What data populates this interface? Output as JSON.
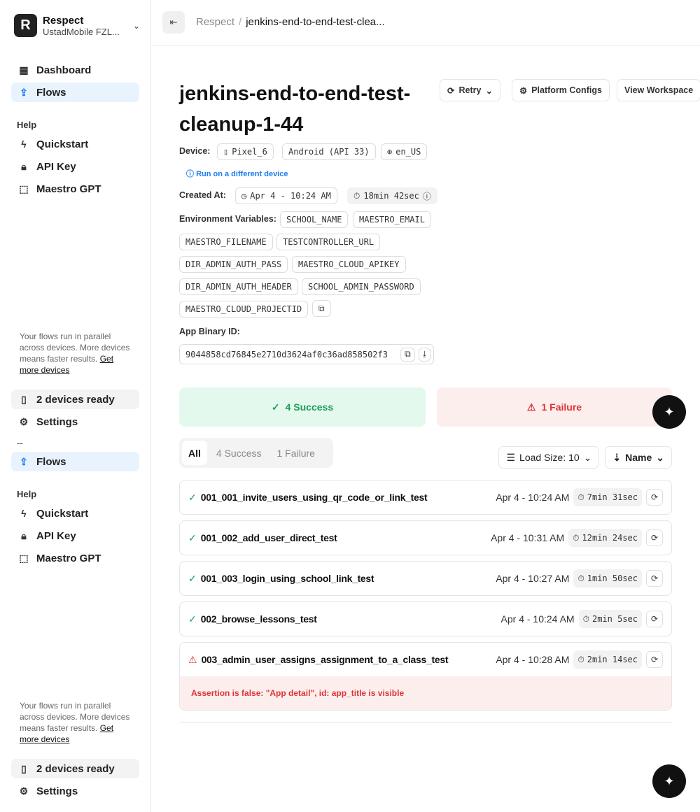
{
  "org": {
    "name": "Respect",
    "sub": "UstadMobile FZL...",
    "logo": "R"
  },
  "sidebar": [
    {
      "nav": [
        {
          "label": "Dashboard",
          "icon": "grid-icon"
        },
        {
          "label": "Flows",
          "icon": "upload-icon",
          "active": true
        }
      ],
      "help": "Help",
      "help_items": [
        {
          "label": "Quickstart"
        },
        {
          "label": "API Key"
        },
        {
          "label": "Maestro GPT"
        }
      ],
      "note": "Your flows run in parallel across devices. More devices means faster results.",
      "note_link": "Get more devices",
      "devices": "2 devices ready",
      "settings": "Settings"
    },
    {
      "sep": "--",
      "nav": [
        {
          "label": "Flows"
        }
      ],
      "help": "Help",
      "help_items": [
        {
          "label": "Quickstart"
        },
        {
          "label": "API Key"
        },
        {
          "label": "Maestro GPT"
        }
      ],
      "note": "Your flows run in parallel across devices. More devices means faster results.",
      "note_link": "Get more devices",
      "devices": "2 devices ready",
      "settings": "Settings"
    }
  ],
  "breadcrumb": {
    "parent": "Respect",
    "sep": "/",
    "current": "jenkins-end-to-end-test-clea..."
  },
  "title": "jenkins-end-to-end-test-cleanup-1-44",
  "actions": {
    "retry": "Retry",
    "platform": "Platform Configs",
    "workspace": "View Workspace"
  },
  "device": {
    "label": "Device:",
    "model": "Pixel_6",
    "os": "Android (API 33)",
    "locale": "en_US",
    "link": "Run on a different device"
  },
  "created": {
    "label": "Created At:",
    "value": "Apr 4 - 10:24 AM",
    "duration": "18min 42sec"
  },
  "env": {
    "label": "Environment Variables:",
    "vars": [
      "SCHOOL_NAME",
      "MAESTRO_EMAIL",
      "MAESTRO_FILENAME",
      "TESTCONTROLLER_URL",
      "DIR_ADMIN_AUTH_PASS",
      "MAESTRO_CLOUD_APIKEY",
      "DIR_ADMIN_AUTH_HEADER",
      "SCHOOL_ADMIN_PASSWORD",
      "MAESTRO_CLOUD_PROJECTID"
    ]
  },
  "binary": {
    "label": "App Binary ID:",
    "value": "9044858cd76845e2710d3624af0c36ad858502f3"
  },
  "summary": {
    "success": "4 Success",
    "failure": "1 Failure"
  },
  "tabs": [
    "All",
    "4 Success",
    "1 Failure"
  ],
  "load_size": "Load Size: 10",
  "sort": "Name",
  "flows": [
    {
      "name": "001_001_invite_users_using_qr_code_or_link_test",
      "date": "Apr 4 - 10:24 AM",
      "dur": "7min 31sec",
      "status": "success"
    },
    {
      "name": "001_002_add_user_direct_test",
      "date": "Apr 4 - 10:31 AM",
      "dur": "12min 24sec",
      "status": "success"
    },
    {
      "name": "001_003_login_using_school_link_test",
      "date": "Apr 4 - 10:27 AM",
      "dur": "1min 50sec",
      "status": "success"
    },
    {
      "name": "002_browse_lessons_test",
      "date": "Apr 4 - 10:24 AM",
      "dur": "2min 5sec",
      "status": "success"
    },
    {
      "name": "003_admin_user_assigns_assignment_to_a_class_test",
      "date": "Apr 4 - 10:28 AM",
      "dur": "2min 14sec",
      "status": "failure",
      "error": "Assertion is false: \"App detail\", id: app_title is visible"
    }
  ],
  "colors": {
    "accent": "#1a7cf0",
    "success": "#1f9d55",
    "failure": "#d33"
  }
}
